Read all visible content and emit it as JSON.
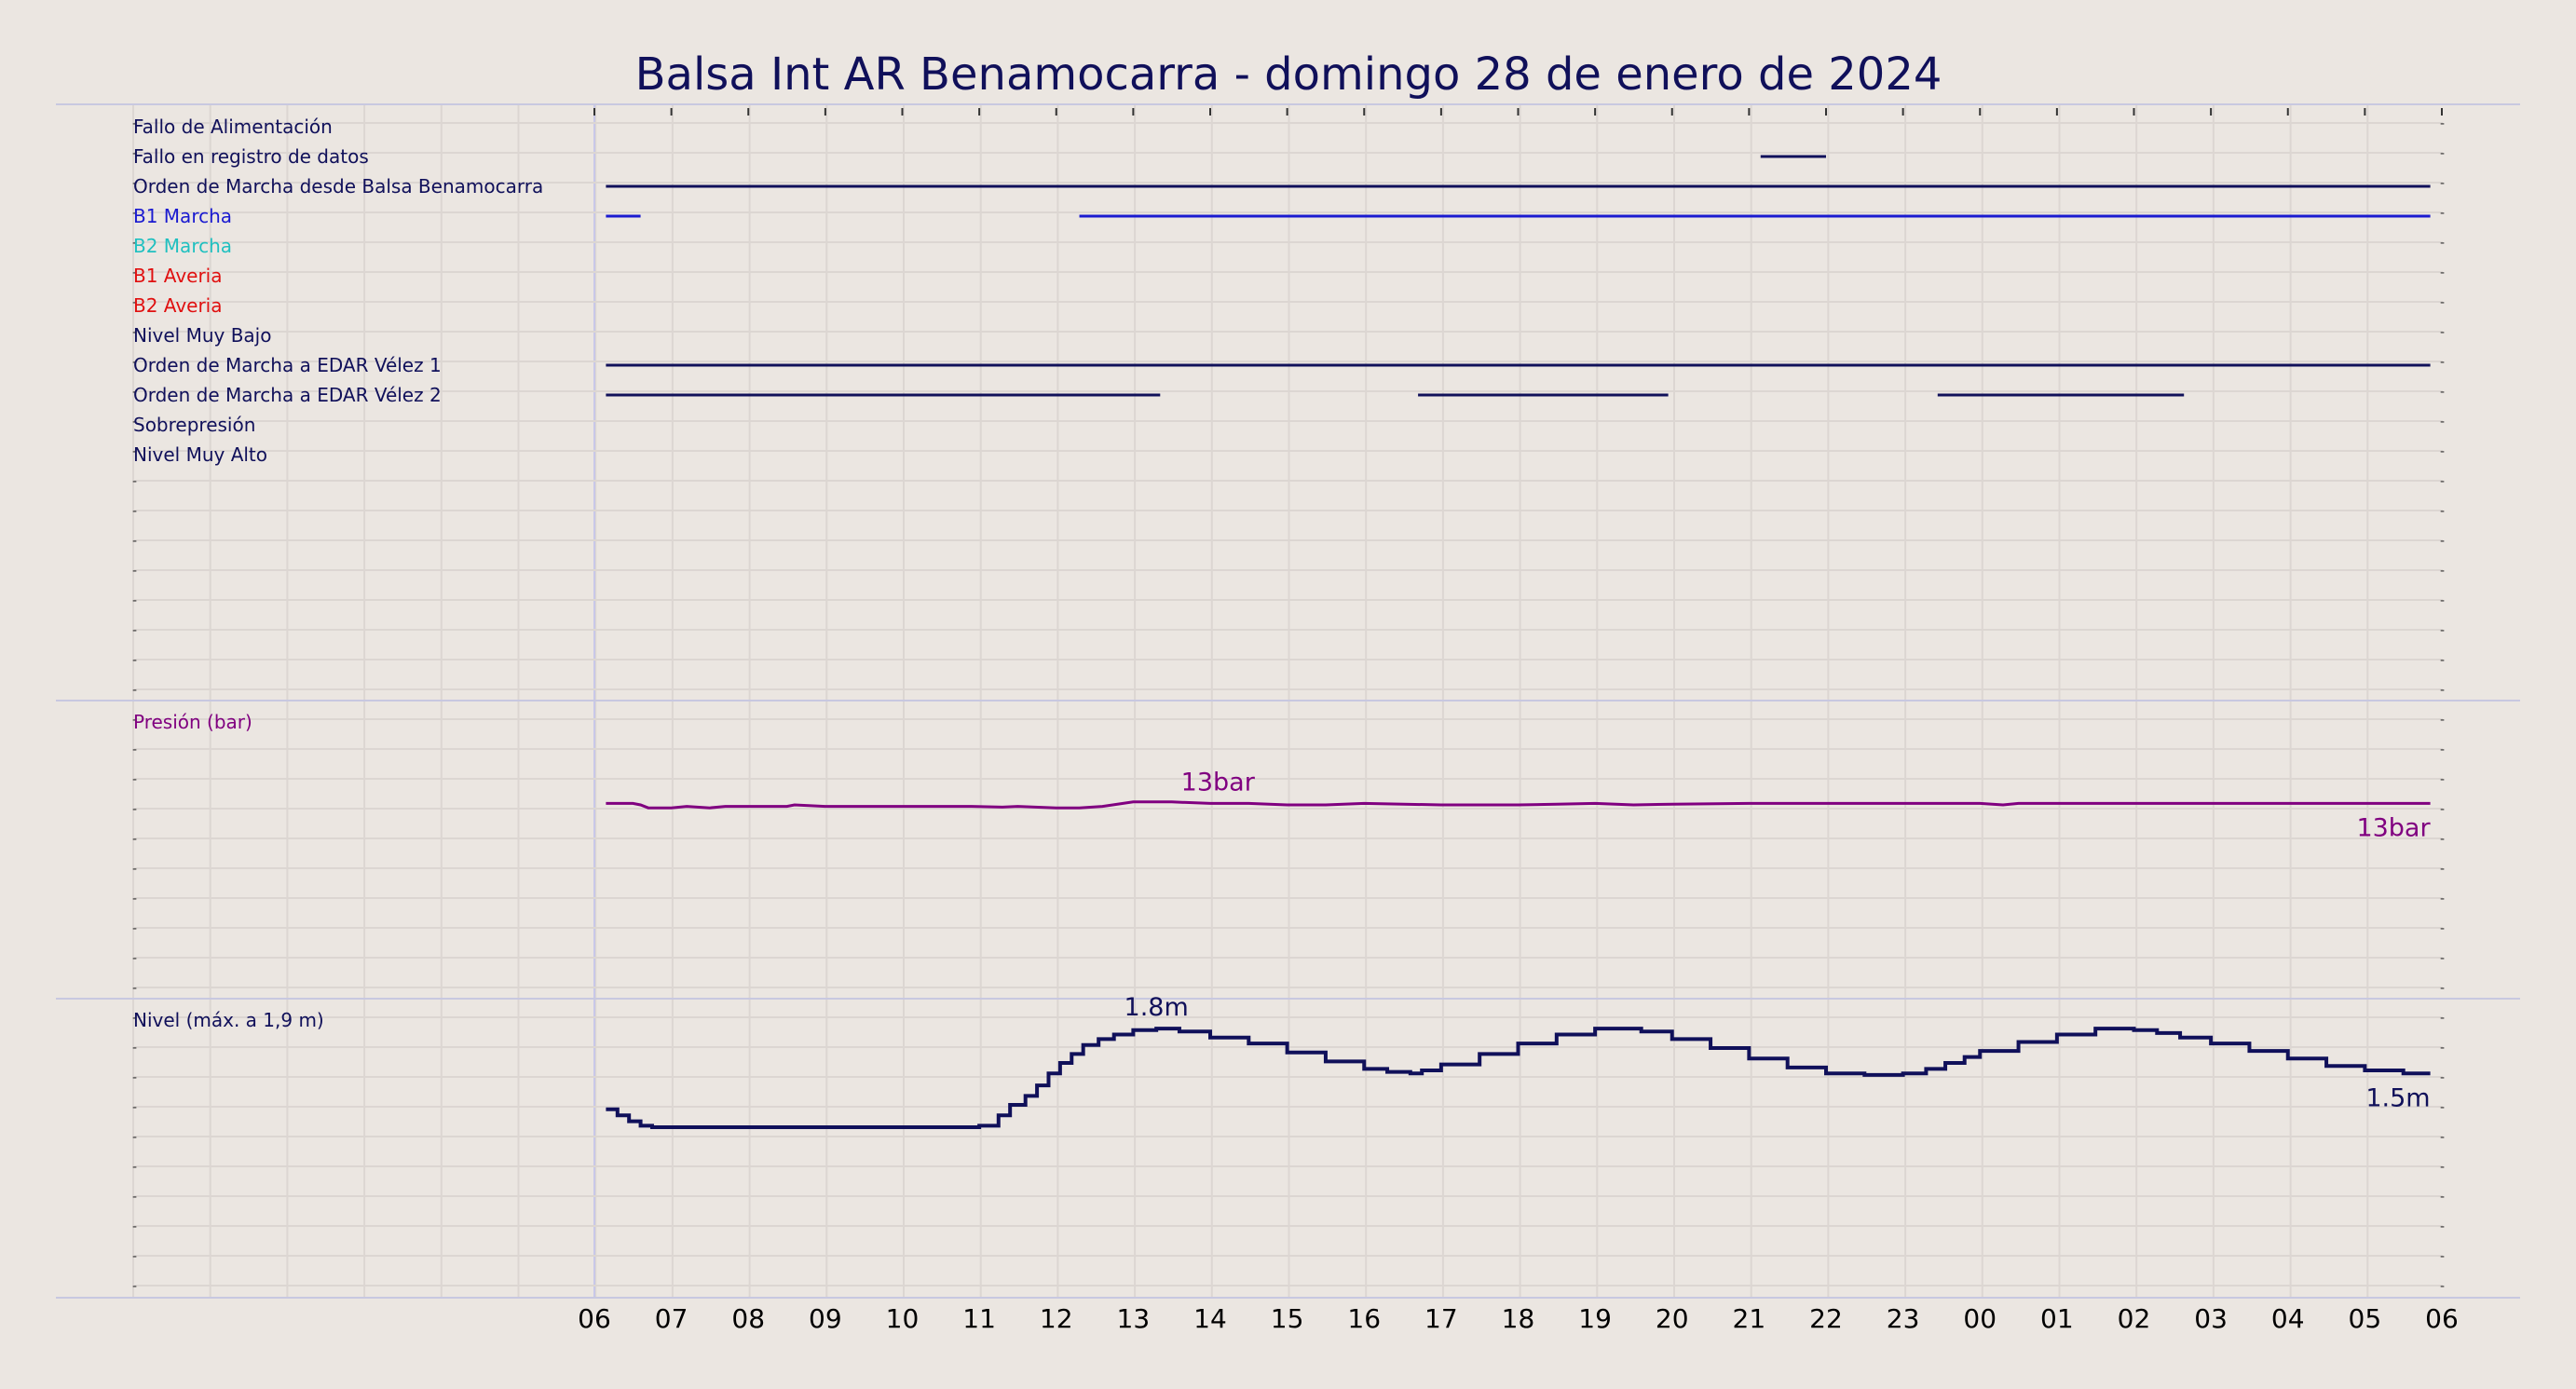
{
  "chart_data": {
    "title": "Balsa Int AR Benamocarra   -   domingo 28 de enero de 2024",
    "type": "line",
    "grid": true,
    "x_ticks": [
      "06",
      "07",
      "08",
      "09",
      "10",
      "11",
      "12",
      "13",
      "14",
      "15",
      "16",
      "17",
      "18",
      "19",
      "20",
      "21",
      "22",
      "23",
      "00",
      "01",
      "02",
      "03",
      "04",
      "05",
      "06"
    ],
    "x_range_hours": [
      0,
      24
    ],
    "panels": [
      {
        "type": "timeline",
        "signals": [
          {
            "label": "Fallo de Alimentación",
            "color": "#10105a",
            "intervals": []
          },
          {
            "label": "Fallo en registro de datos",
            "color": "#10105a",
            "intervals": [
              [
                15.15,
                16.0
              ]
            ]
          },
          {
            "label": "Orden de Marcha desde Balsa Benamocarra",
            "color": "#10105a",
            "intervals": [
              [
                0.15,
                23.85
              ]
            ]
          },
          {
            "label": "B1 Marcha",
            "color": "#1a1ad0",
            "intervals": [
              [
                0.15,
                0.6
              ],
              [
                6.3,
                23.85
              ]
            ]
          },
          {
            "label": "B2 Marcha",
            "color": "#20c0c0",
            "intervals": []
          },
          {
            "label": "B1 Averia",
            "color": "#e01010",
            "intervals": []
          },
          {
            "label": "B2 Averia",
            "color": "#e01010",
            "intervals": []
          },
          {
            "label": "Nivel Muy Bajo",
            "color": "#10105a",
            "intervals": []
          },
          {
            "label": "Orden de Marcha a EDAR Vélez 1",
            "color": "#10105a",
            "intervals": [
              [
                0.15,
                23.85
              ]
            ]
          },
          {
            "label": "Orden de Marcha a EDAR Vélez 2",
            "color": "#10105a",
            "intervals": [
              [
                0.15,
                7.35
              ],
              [
                10.7,
                13.95
              ],
              [
                17.45,
                20.65
              ]
            ]
          },
          {
            "label": "Sobrepresión",
            "color": "#10105a",
            "intervals": []
          },
          {
            "label": "Nivel Muy Alto",
            "color": "#10105a",
            "intervals": []
          }
        ]
      },
      {
        "type": "line",
        "label": "Presión (bar)",
        "color": "#800080",
        "ylim": [
          0,
          20
        ],
        "x": [
          0.15,
          0.5,
          0.6,
          0.7,
          1.0,
          1.2,
          1.5,
          1.7,
          2.0,
          2.5,
          2.6,
          3.0,
          4.0,
          4.5,
          4.9,
          5.3,
          5.5,
          6.0,
          6.3,
          6.6,
          7.0,
          7.5,
          8.0,
          8.5,
          9.0,
          9.5,
          10.0,
          11.0,
          11.5,
          12.0,
          12.5,
          13.0,
          13.5,
          14.0,
          15.0,
          16.0,
          17.0,
          18.0,
          18.3,
          18.5,
          19.0,
          20.0,
          21.0,
          22.0,
          23.0,
          23.85
        ],
        "y": [
          13.1,
          13.1,
          13.0,
          12.8,
          12.8,
          12.9,
          12.8,
          12.9,
          12.9,
          12.9,
          13.0,
          12.9,
          12.9,
          12.9,
          12.9,
          12.85,
          12.9,
          12.8,
          12.8,
          12.9,
          13.2,
          13.2,
          13.1,
          13.1,
          13.0,
          13.0,
          13.1,
          13.0,
          13.0,
          13.0,
          13.05,
          13.1,
          13.0,
          13.05,
          13.1,
          13.1,
          13.1,
          13.1,
          13.0,
          13.1,
          13.1,
          13.1,
          13.1,
          13.1,
          13.1,
          13.1
        ],
        "annotations": [
          {
            "x": 8.1,
            "text": "13bar"
          },
          {
            "x": 23.85,
            "text": "13bar"
          }
        ]
      },
      {
        "type": "step",
        "label": "Nivel (máx. a 1,9 m)",
        "color": "#10105a",
        "ylim": [
          0,
          2.0
        ],
        "x": [
          0.15,
          0.3,
          0.45,
          0.6,
          0.75,
          1.0,
          1.4,
          1.7,
          2.0,
          2.5,
          3.0,
          3.5,
          4.0,
          4.5,
          5.0,
          5.25,
          5.4,
          5.6,
          5.75,
          5.9,
          6.05,
          6.2,
          6.35,
          6.55,
          6.75,
          7.0,
          7.3,
          7.6,
          8.0,
          8.5,
          9.0,
          9.5,
          10.0,
          10.3,
          10.6,
          10.75,
          11.0,
          11.5,
          12.0,
          12.5,
          13.0,
          13.3,
          13.6,
          14.0,
          14.5,
          15.0,
          15.5,
          16.0,
          16.5,
          17.0,
          17.3,
          17.55,
          17.8,
          18.0,
          18.5,
          19.0,
          19.5,
          20.0,
          20.3,
          20.6,
          21.0,
          21.5,
          22.0,
          22.5,
          23.0,
          23.5,
          23.85
        ],
        "y": [
          1.26,
          1.22,
          1.18,
          1.15,
          1.14,
          1.14,
          1.14,
          1.14,
          1.14,
          1.14,
          1.14,
          1.14,
          1.14,
          1.14,
          1.15,
          1.22,
          1.29,
          1.35,
          1.42,
          1.5,
          1.57,
          1.63,
          1.69,
          1.73,
          1.76,
          1.79,
          1.8,
          1.78,
          1.74,
          1.7,
          1.64,
          1.58,
          1.53,
          1.51,
          1.5,
          1.52,
          1.56,
          1.63,
          1.7,
          1.76,
          1.8,
          1.8,
          1.78,
          1.73,
          1.67,
          1.6,
          1.54,
          1.5,
          1.49,
          1.5,
          1.53,
          1.57,
          1.61,
          1.65,
          1.71,
          1.76,
          1.8,
          1.79,
          1.77,
          1.74,
          1.7,
          1.65,
          1.6,
          1.55,
          1.52,
          1.5,
          1.5
        ],
        "annotations": [
          {
            "x": 7.3,
            "text": "1.8m"
          },
          {
            "x": 23.85,
            "text": "1.5m"
          }
        ]
      }
    ]
  }
}
